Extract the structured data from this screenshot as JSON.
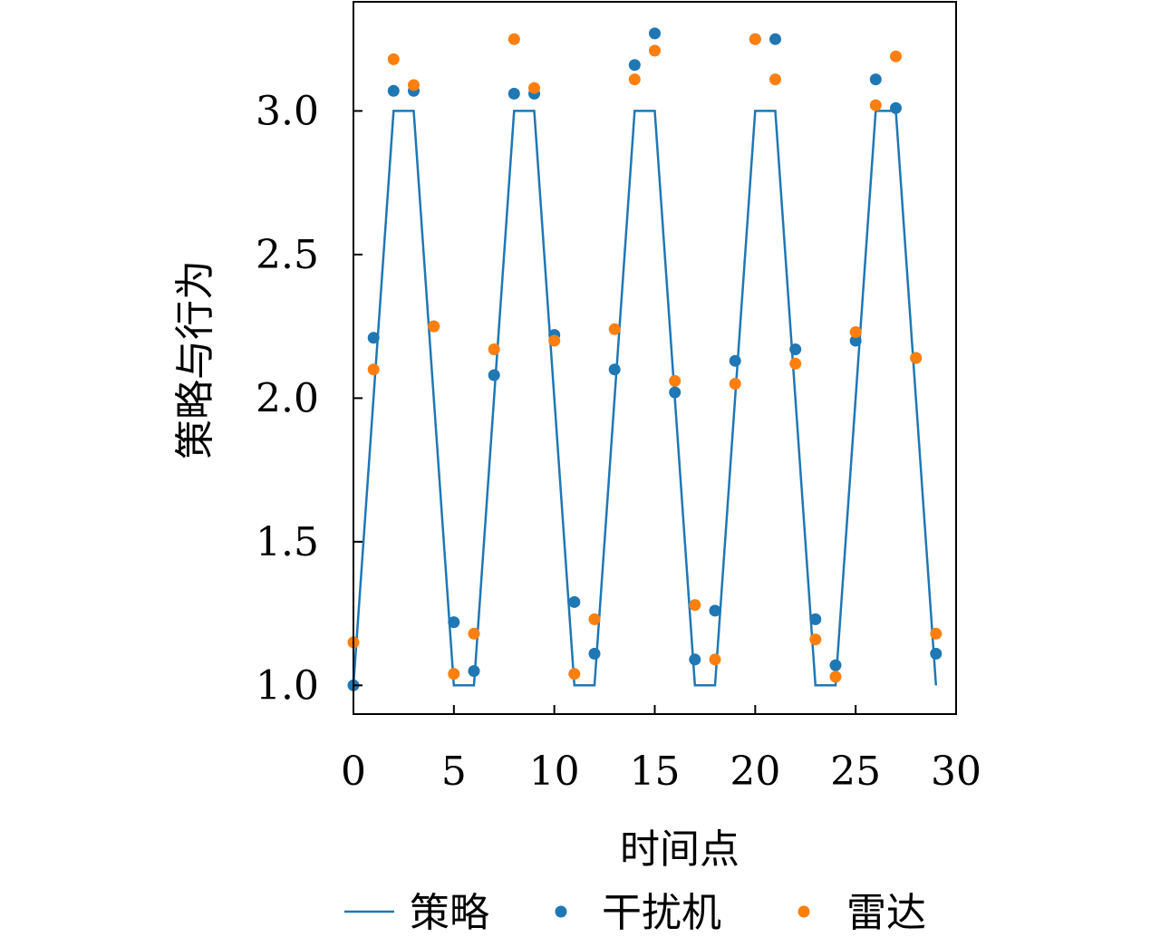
{
  "chart_data": {
    "type": "line",
    "xlabel": "时间点",
    "ylabel": "策略与行为",
    "xlim": [
      0,
      30
    ],
    "ylim": [
      0.9,
      3.38
    ],
    "xticks": [
      0,
      5,
      10,
      15,
      20,
      25,
      30
    ],
    "yticks": [
      1.0,
      1.5,
      2.0,
      2.5,
      3.0
    ],
    "xtick_labels": [
      "0",
      "5",
      "10",
      "15",
      "20",
      "25",
      "30"
    ],
    "ytick_labels": [
      "1.0",
      "1.5",
      "2.0",
      "2.5",
      "3.0"
    ],
    "grid": false,
    "legend": {
      "placement": "bottom",
      "entries": [
        "策略",
        "干扰机",
        "雷达"
      ]
    },
    "series": [
      {
        "name": "策略",
        "kind": "line",
        "color": "#1f77b4",
        "x": [
          0,
          2,
          3,
          5,
          6,
          8,
          9,
          11,
          12,
          14,
          15,
          17,
          18,
          20,
          21,
          23,
          24,
          26,
          27,
          29
        ],
        "y": [
          1,
          3,
          3,
          1,
          1,
          3,
          3,
          1,
          1,
          3,
          3,
          1,
          1,
          3,
          3,
          1,
          1,
          3,
          3,
          1
        ]
      },
      {
        "name": "干扰机",
        "kind": "scatter",
        "color": "#1f77b4",
        "x": [
          0,
          1,
          2,
          3,
          4,
          5,
          6,
          7,
          8,
          9,
          10,
          11,
          12,
          13,
          14,
          15,
          16,
          17,
          18,
          19,
          20,
          21,
          22,
          23,
          24,
          25,
          26,
          27,
          28,
          29
        ],
        "y": [
          1.0,
          2.21,
          3.07,
          3.07,
          2.25,
          1.22,
          1.05,
          2.08,
          3.06,
          3.06,
          2.22,
          1.29,
          1.11,
          2.1,
          3.16,
          3.27,
          2.02,
          1.09,
          1.26,
          2.13,
          3.25,
          3.25,
          2.17,
          1.23,
          1.07,
          2.2,
          3.11,
          3.01,
          2.14,
          1.11
        ]
      },
      {
        "name": "雷达",
        "kind": "scatter",
        "color": "#ff7f0e",
        "x": [
          0,
          1,
          2,
          3,
          4,
          5,
          6,
          7,
          8,
          9,
          10,
          11,
          12,
          13,
          14,
          15,
          16,
          17,
          18,
          19,
          20,
          21,
          22,
          23,
          24,
          25,
          26,
          27,
          28,
          29
        ],
        "y": [
          1.15,
          2.1,
          3.18,
          3.09,
          2.25,
          1.04,
          1.18,
          2.17,
          3.25,
          3.08,
          2.2,
          1.04,
          1.23,
          2.24,
          3.11,
          3.21,
          2.06,
          1.28,
          1.09,
          2.05,
          3.25,
          3.11,
          2.12,
          1.16,
          1.03,
          2.23,
          3.02,
          3.19,
          2.14,
          1.18
        ]
      }
    ]
  }
}
